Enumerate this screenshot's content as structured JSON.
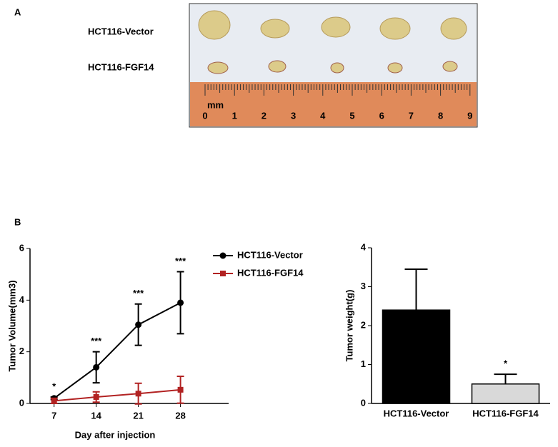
{
  "panel_a": {
    "label": "A",
    "rows": [
      "HCT116-Vector",
      "HCT116-FGF14"
    ],
    "ruler_unit": "mm",
    "ruler_numbers": [
      0,
      1,
      2,
      3,
      4,
      5,
      6,
      7,
      8,
      9
    ]
  },
  "chart_data": [
    {
      "type": "line",
      "panel_label": "B",
      "x_label": "Day after injection",
      "y_label": "Tumor Volume(mm3)",
      "x": [
        7,
        14,
        21,
        28
      ],
      "xlim": [
        3,
        36
      ],
      "xticks": [
        7,
        14,
        21,
        28
      ],
      "ylim": [
        0,
        6
      ],
      "yticks": [
        0,
        2,
        4,
        6
      ],
      "legend": "top-right",
      "series": [
        {
          "name": "HCT116-Vector",
          "color": "#000000",
          "marker": "circle",
          "values": [
            0.2,
            1.4,
            3.05,
            3.9
          ],
          "errors": [
            0.05,
            0.6,
            0.8,
            1.2
          ]
        },
        {
          "name": "HCT116-FGF14",
          "color": "#b22222",
          "marker": "square",
          "values": [
            0.1,
            0.25,
            0.38,
            0.53
          ],
          "errors": [
            0.1,
            0.2,
            0.4,
            0.52
          ]
        }
      ],
      "significance": [
        "*",
        "***",
        "***",
        "***"
      ]
    },
    {
      "type": "bar",
      "y_label": "Tumor weight(g)",
      "categories": [
        "HCT116-Vector",
        "HCT116-FGF14"
      ],
      "values": [
        2.4,
        0.5
      ],
      "errors": [
        1.05,
        0.25
      ],
      "colors": [
        "#000000",
        "#d9d9d9"
      ],
      "ylim": [
        0,
        4
      ],
      "yticks": [
        0,
        1,
        2,
        3,
        4
      ],
      "significance": [
        null,
        "*"
      ]
    }
  ]
}
